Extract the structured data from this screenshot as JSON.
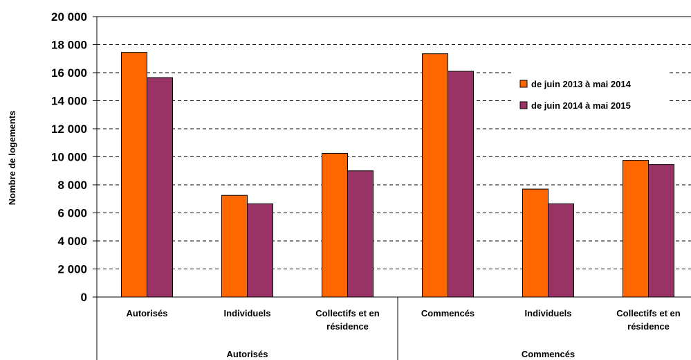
{
  "chart_data": {
    "type": "bar",
    "ylabel": "Nombre de logements",
    "ylim": [
      0,
      20000
    ],
    "yticks": [
      "0",
      "2 000",
      "4 000",
      "6 000",
      "8 000",
      "10 000",
      "12 000",
      "14 000",
      "16 000",
      "18 000",
      "20 000"
    ],
    "categories": [
      [
        "Autorisés"
      ],
      [
        "Individuels"
      ],
      [
        "Collectifs et en",
        "résidence"
      ],
      [
        "Commencés"
      ],
      [
        "Individuels"
      ],
      [
        "Collectifs et en",
        "résidence"
      ]
    ],
    "groups": [
      {
        "label": "Autorisés",
        "span": 3
      },
      {
        "label": "Commencés",
        "span": 3
      }
    ],
    "series": [
      {
        "name": "de juin 2013 à mai 2014",
        "color": "#FF6600",
        "values": [
          17450,
          7250,
          10250,
          17350,
          7700,
          9750
        ]
      },
      {
        "name": "de juin 2014 à mai 2015",
        "color": "#993366",
        "values": [
          15650,
          6650,
          9000,
          16100,
          6650,
          9450
        ]
      }
    ],
    "grid": true,
    "legend_position": "top-right"
  }
}
